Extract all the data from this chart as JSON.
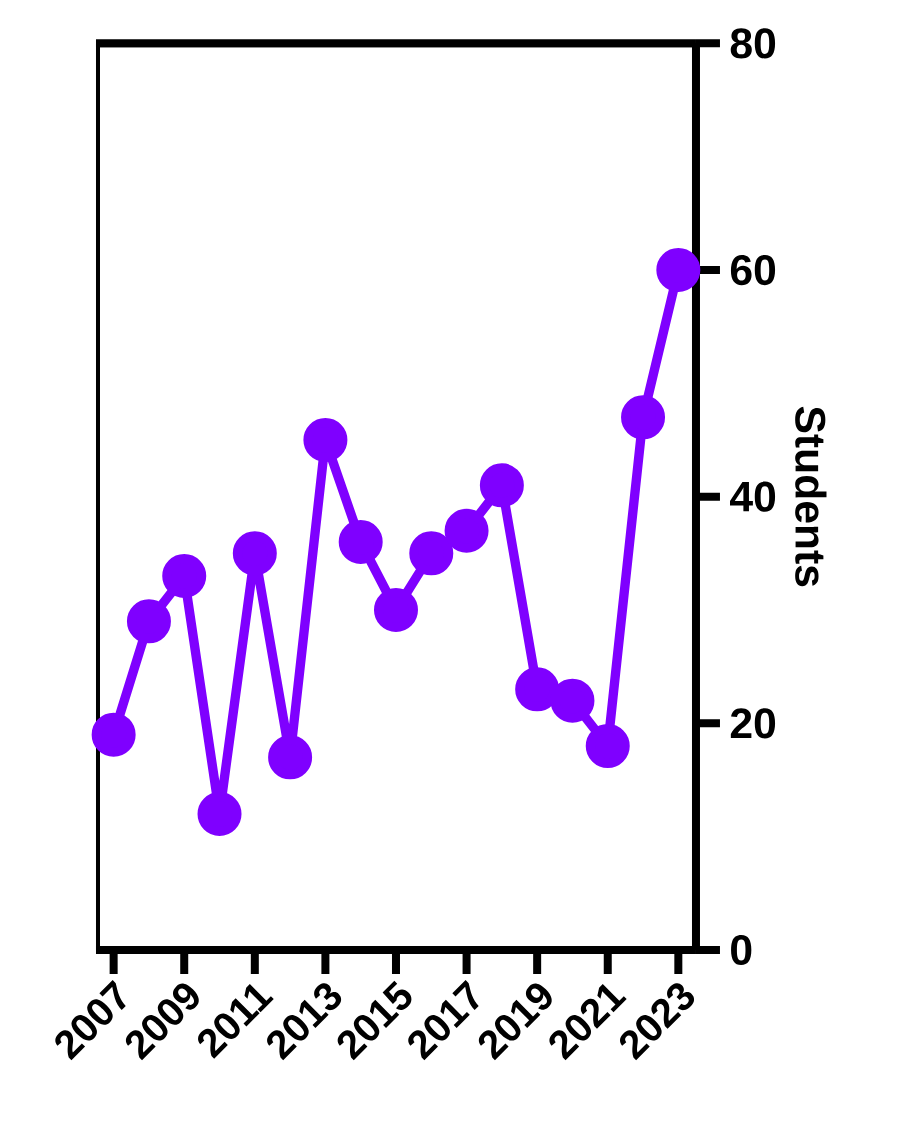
{
  "chart_data": {
    "type": "line",
    "ylabel": "Students",
    "x": [
      2007,
      2008,
      2009,
      2010,
      2011,
      2012,
      2013,
      2014,
      2015,
      2016,
      2017,
      2018,
      2019,
      2020,
      2021,
      2022,
      2023
    ],
    "series": [
      {
        "color": "#7f00ff",
        "values": [
          19,
          29,
          33,
          12,
          35,
          17,
          45,
          36,
          30,
          35,
          37,
          41,
          23,
          22,
          18,
          47,
          60
        ]
      }
    ],
    "xlim": [
      2006.5,
      2023.5
    ],
    "xticks": [
      2007,
      2009,
      2011,
      2013,
      2015,
      2017,
      2019,
      2021,
      2023
    ],
    "ylim": [
      0,
      80
    ],
    "yticks": [
      0,
      20,
      40,
      60,
      80
    ],
    "marker": "circle",
    "line_style": "solid"
  }
}
